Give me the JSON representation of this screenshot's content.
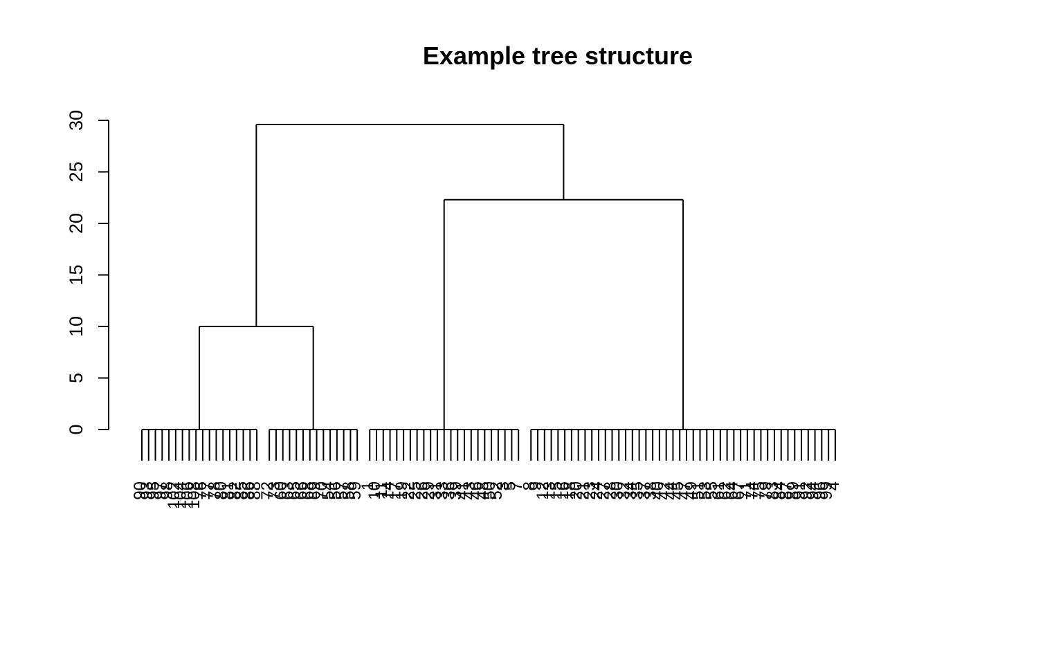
{
  "chart_data": {
    "type": "dendrogram",
    "title": "Example tree structure",
    "xlabel": "",
    "ylabel": "",
    "ylim": [
      0,
      30
    ],
    "y_ticks": [
      0,
      5,
      10,
      15,
      20,
      25,
      30
    ],
    "y_tick_labels": [
      "0",
      "5",
      "10",
      "15",
      "20",
      "25",
      "30"
    ],
    "colors": {
      "line": "#000000",
      "background": "#ffffff",
      "text": "#000000"
    },
    "clusters": [
      {
        "name": "cluster-1",
        "leaf_count": 18,
        "merge_height": 0,
        "leaf_labels": [
          "90",
          "93",
          "95",
          "97",
          "98",
          "102",
          "104",
          "106",
          "108",
          "76",
          "77",
          "78",
          "80",
          "81",
          "82",
          "85",
          "86",
          "88"
        ]
      },
      {
        "name": "cluster-2",
        "leaf_count": 14,
        "merge_height": 0,
        "leaf_labels": [
          "72",
          "73",
          "60",
          "63",
          "65",
          "66",
          "68",
          "69",
          "70",
          "54",
          "56",
          "57",
          "58",
          "59"
        ]
      },
      {
        "name": "cluster-3",
        "leaf_count": 23,
        "merge_height": 0,
        "leaf_labels": [
          "1",
          "10",
          "11",
          "14",
          "17",
          "19",
          "22",
          "25",
          "26",
          "29",
          "31",
          "33",
          "36",
          "39",
          "41",
          "43",
          "46",
          "48",
          "50",
          "52",
          "3",
          "5",
          "7"
        ]
      },
      {
        "name": "cluster-4",
        "leaf_count": 46,
        "merge_height": 0,
        "leaf_labels": [
          "8",
          "9",
          "12",
          "13",
          "15",
          "16",
          "18",
          "20",
          "21",
          "23",
          "24",
          "27",
          "28",
          "30",
          "32",
          "34",
          "35",
          "37",
          "38",
          "40",
          "42",
          "44",
          "45",
          "47",
          "49",
          "51",
          "53",
          "55",
          "61",
          "62",
          "64",
          "67",
          "71",
          "74",
          "75",
          "79",
          "83",
          "84",
          "87",
          "89",
          "91",
          "92",
          "94",
          "96",
          "99",
          "4"
        ]
      }
    ],
    "merges": [
      {
        "name": "merge-left",
        "children": [
          "cluster-1",
          "cluster-2"
        ],
        "height": 10
      },
      {
        "name": "merge-right",
        "children": [
          "cluster-3",
          "cluster-4"
        ],
        "height": 22.3
      },
      {
        "name": "merge-root",
        "children": [
          "merge-left",
          "merge-right"
        ],
        "height": 29.6
      }
    ]
  }
}
